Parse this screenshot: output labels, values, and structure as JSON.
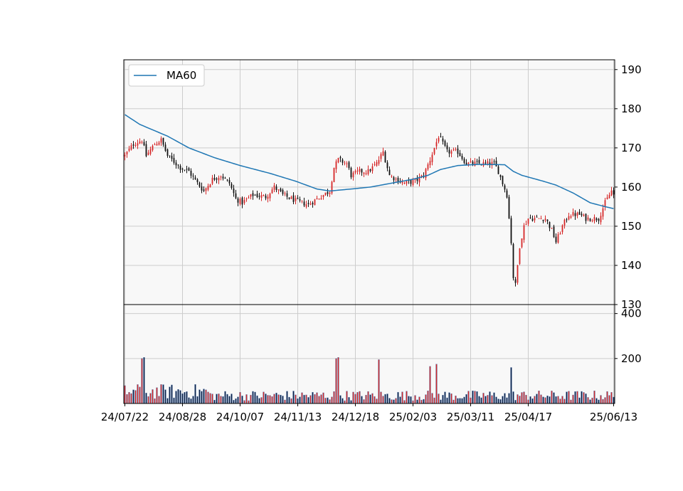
{
  "chart_data": {
    "type": "candlestick",
    "legend": {
      "label": "MA60",
      "placement": "top-left"
    },
    "colors": {
      "up": "#d62728",
      "down": "#111111",
      "ma": "#1f77b4",
      "vol_up": "#d62728",
      "vol_down": "#0a1f44",
      "grid": "#cccccc",
      "panel_bg": "#f8f8f8"
    },
    "price_axis": {
      "ylim": [
        130,
        192.5
      ],
      "ticks": [
        130,
        140,
        150,
        160,
        170,
        180,
        190
      ],
      "position": "right",
      "grid": true
    },
    "volume_axis": {
      "ylim": [
        0,
        440
      ],
      "ticks": [
        200,
        400
      ],
      "position": "right",
      "grid": true
    },
    "x_axis": {
      "n_points": 230,
      "tick_labels": [
        "24/07/22",
        "24/08/28",
        "24/10/07",
        "24/11/13",
        "24/12/18",
        "25/02/03",
        "25/03/11",
        "25/04/17",
        "25/06/13"
      ],
      "tick_indices": [
        0,
        27,
        54,
        81,
        108,
        135,
        162,
        189,
        229
      ]
    },
    "price_anchors": [
      [
        0,
        168
      ],
      [
        4,
        171
      ],
      [
        8,
        172
      ],
      [
        10,
        168
      ],
      [
        14,
        171
      ],
      [
        17,
        172
      ],
      [
        20,
        168
      ],
      [
        26,
        165
      ],
      [
        30,
        164
      ],
      [
        34,
        161
      ],
      [
        37,
        159
      ],
      [
        41,
        162
      ],
      [
        45,
        163
      ],
      [
        49,
        161
      ],
      [
        52,
        157
      ],
      [
        55,
        156
      ],
      [
        60,
        158
      ],
      [
        66,
        157.5
      ],
      [
        70,
        160
      ],
      [
        74,
        158
      ],
      [
        80,
        156.5
      ],
      [
        86,
        155.5
      ],
      [
        90,
        157
      ],
      [
        96,
        159
      ],
      [
        98,
        165
      ],
      [
        100,
        167
      ],
      [
        104,
        166
      ],
      [
        106,
        163
      ],
      [
        110,
        164
      ],
      [
        114,
        164
      ],
      [
        118,
        166
      ],
      [
        121,
        169
      ],
      [
        124,
        163
      ],
      [
        127,
        162
      ],
      [
        131,
        161
      ],
      [
        136,
        161.5
      ],
      [
        140,
        163
      ],
      [
        143,
        167
      ],
      [
        147,
        173
      ],
      [
        151,
        169
      ],
      [
        156,
        169
      ],
      [
        160,
        166
      ],
      [
        166,
        166
      ],
      [
        173,
        166
      ],
      [
        175,
        164
      ],
      [
        177,
        161
      ],
      [
        179,
        158
      ],
      [
        181,
        146
      ],
      [
        182,
        137
      ],
      [
        183,
        135
      ],
      [
        185,
        145
      ],
      [
        187,
        150
      ],
      [
        189,
        152
      ],
      [
        193,
        152
      ],
      [
        197,
        152
      ],
      [
        200,
        149
      ],
      [
        202,
        146
      ],
      [
        205,
        150
      ],
      [
        208,
        153
      ],
      [
        213,
        153
      ],
      [
        216,
        152
      ],
      [
        222,
        152
      ],
      [
        225,
        156
      ],
      [
        228,
        159
      ],
      [
        229,
        158
      ]
    ],
    "ma60_anchors": [
      [
        0,
        178.5
      ],
      [
        7,
        176
      ],
      [
        20,
        173
      ],
      [
        30,
        170
      ],
      [
        42,
        167.5
      ],
      [
        54,
        165.5
      ],
      [
        68,
        163.5
      ],
      [
        80,
        161.5
      ],
      [
        90,
        159.5
      ],
      [
        96,
        159
      ],
      [
        106,
        159.5
      ],
      [
        115,
        160
      ],
      [
        125,
        161
      ],
      [
        135,
        162
      ],
      [
        142,
        163
      ],
      [
        148,
        164.5
      ],
      [
        156,
        165.5
      ],
      [
        166,
        165.8
      ],
      [
        178,
        165.7
      ],
      [
        182,
        164
      ],
      [
        186,
        163
      ],
      [
        196,
        161.5
      ],
      [
        202,
        160.5
      ],
      [
        210,
        158.5
      ],
      [
        218,
        156
      ],
      [
        225,
        155
      ],
      [
        229,
        154.5
      ]
    ],
    "volume_spikes": [
      [
        8,
        200
      ],
      [
        9,
        205
      ],
      [
        99,
        200
      ],
      [
        100,
        205
      ],
      [
        119,
        195
      ],
      [
        143,
        165
      ],
      [
        146,
        175
      ],
      [
        181,
        160
      ]
    ],
    "volume_base": 35
  }
}
